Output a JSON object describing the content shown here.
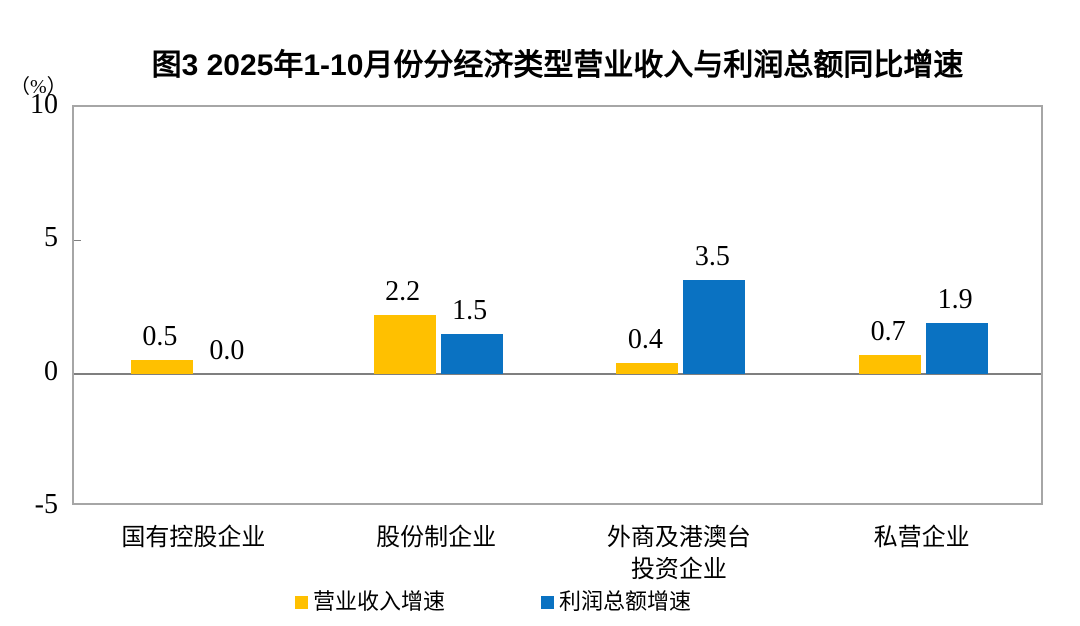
{
  "chart": {
    "figure_title": "图3  2025年1-10月份分经济类型营业收入与利润总额同比增速",
    "unit_label": "（%）"
  },
  "chart_data": {
    "type": "bar",
    "title": "图3  2025年1-10月份分经济类型营业收入与利润总额同比增速",
    "unit_label": "（%）",
    "categories": [
      "国有控股企业",
      "股份制企业",
      "外商及港澳台投资企业",
      "私营企业"
    ],
    "category_lines": [
      [
        "国有控股企业"
      ],
      [
        "股份制企业"
      ],
      [
        "外商及港澳台",
        "投资企业"
      ],
      [
        "私营企业"
      ]
    ],
    "series": [
      {
        "name": "营业收入增速",
        "color": "#FFC000",
        "values": [
          0.5,
          2.2,
          0.4,
          0.7
        ],
        "value_labels": [
          "0.5",
          "2.2",
          "0.4",
          "0.7"
        ]
      },
      {
        "name": "利润总额增速",
        "color": "#0A72C2",
        "values": [
          0.0,
          1.5,
          3.5,
          1.9
        ],
        "value_labels": [
          "0.0",
          "1.5",
          "3.5",
          "1.9"
        ]
      }
    ],
    "xlabel": "",
    "ylabel": "（%）",
    "ylim": [
      -5,
      10
    ],
    "yticks": [
      10,
      5,
      0,
      -5
    ],
    "ytick_labels": [
      "10",
      "5",
      "0",
      "-5"
    ],
    "grid": false,
    "legend_position": "bottom",
    "style": {
      "frame_color": "#a6a6a6",
      "zero_line_color": "#7f7f7f",
      "text_color": "#000000",
      "background": "#ffffff"
    }
  }
}
